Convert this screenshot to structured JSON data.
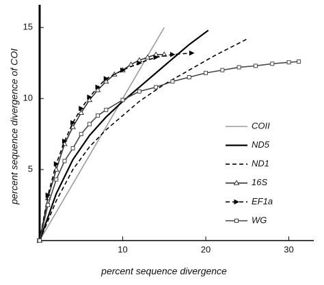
{
  "chart_data": {
    "type": "line",
    "xlabel": "percent sequence divergence",
    "ylabel": "percent sequence divergence of COI",
    "xlim": [
      0,
      33
    ],
    "ylim": [
      0,
      16.6
    ],
    "xticks": [
      10,
      20,
      30
    ],
    "yticks": [
      5,
      10,
      15
    ],
    "legend": "right",
    "series": [
      {
        "name": "COII",
        "color": "#9a9a9a",
        "style": "solid",
        "marker": "none",
        "x": [
          0,
          15
        ],
        "values": [
          0,
          15
        ]
      },
      {
        "name": "ND5",
        "color": "#000000",
        "style": "solid",
        "marker": "none",
        "x": [
          0,
          2,
          4,
          6,
          8,
          10,
          12,
          14,
          16,
          18,
          20.3
        ],
        "values": [
          0,
          3.3,
          5.7,
          7.4,
          8.7,
          9.8,
          10.8,
          11.8,
          12.8,
          13.8,
          14.8
        ]
      },
      {
        "name": "ND1",
        "color": "#000000",
        "style": "dashed",
        "marker": "none",
        "x": [
          0,
          2,
          4,
          6,
          8,
          10,
          12,
          15,
          18,
          21,
          25
        ],
        "values": [
          0,
          2.8,
          5,
          6.6,
          7.8,
          8.8,
          9.8,
          11,
          12,
          13,
          14.2
        ]
      },
      {
        "name": "16S",
        "color": "#333333",
        "style": "solid",
        "marker": "triangle",
        "x": [
          0,
          1,
          2,
          3,
          4,
          5,
          6,
          7,
          8,
          9,
          10,
          11,
          12,
          13,
          14,
          15
        ],
        "values": [
          0,
          3,
          5,
          6.8,
          8,
          9,
          9.9,
          10.6,
          11.2,
          11.7,
          12,
          12.4,
          12.7,
          12.9,
          13.1,
          13.1
        ]
      },
      {
        "name": "EF1a",
        "color": "#000000",
        "style": "dashed",
        "marker": "arrow",
        "x": [
          0,
          1,
          2,
          3,
          4,
          5,
          6,
          7,
          8,
          10,
          12,
          14,
          16,
          18.3
        ],
        "values": [
          0,
          3.2,
          5.4,
          7,
          8.3,
          9.3,
          10.1,
          10.8,
          11.4,
          12,
          12.5,
          12.9,
          13.1,
          13.2
        ]
      },
      {
        "name": "WG",
        "color": "#444444",
        "style": "solid",
        "marker": "square",
        "x": [
          0,
          1,
          2,
          3,
          4,
          5,
          6,
          7,
          8,
          10,
          12,
          14,
          16,
          18,
          20,
          22,
          24,
          26,
          28,
          30,
          31.2
        ],
        "values": [
          0,
          2.5,
          4.3,
          5.6,
          6.5,
          7.5,
          8.2,
          8.8,
          9.2,
          9.9,
          10.5,
          10.8,
          11.2,
          11.5,
          11.8,
          12,
          12.2,
          12.3,
          12.45,
          12.55,
          12.6
        ]
      }
    ]
  }
}
